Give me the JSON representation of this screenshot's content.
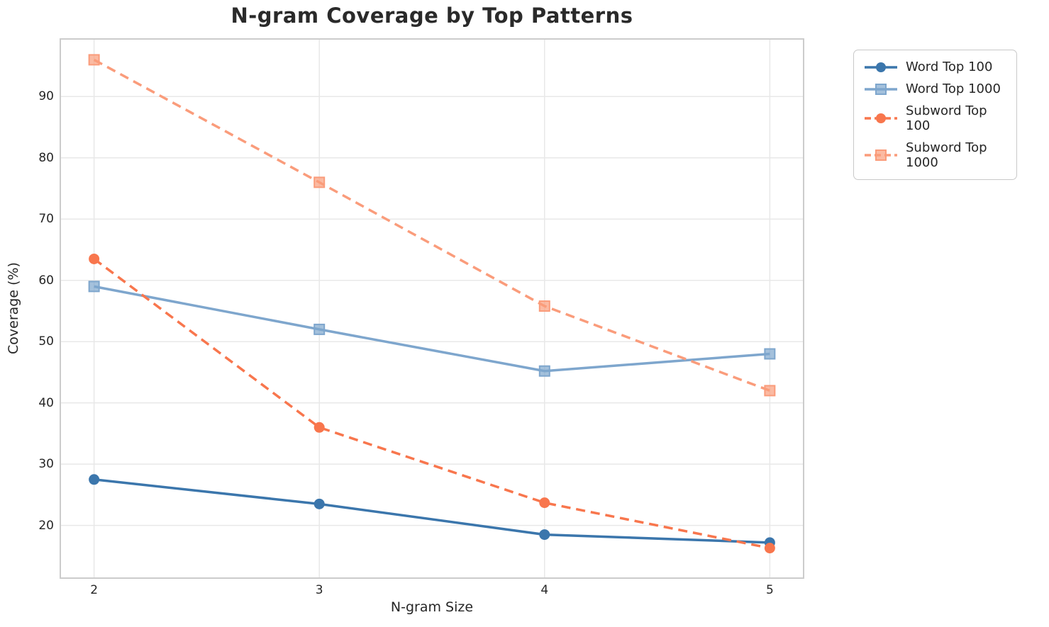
{
  "chart_data": {
    "type": "line",
    "title": "N-gram Coverage by Top Patterns",
    "xlabel": "N-gram Size",
    "ylabel": "Coverage (%)",
    "x": [
      2,
      3,
      4,
      5
    ],
    "xtick_labels": [
      "2",
      "3",
      "4",
      "5"
    ],
    "yticks": [
      20,
      30,
      40,
      50,
      60,
      70,
      80,
      90
    ],
    "xlim": [
      1.85,
      5.15
    ],
    "ylim": [
      11.4,
      99.4
    ],
    "grid": true,
    "grid_color": "#e8e8e8",
    "spine_color": "#cccccc",
    "legend_position": "outside-right-top",
    "series": [
      {
        "name": "Word Top 100",
        "values": [
          27.5,
          23.5,
          18.5,
          17.2
        ],
        "color": "#3B76AC",
        "marker": "circle",
        "linestyle": "solid"
      },
      {
        "name": "Word Top 1000",
        "values": [
          59.0,
          52.0,
          45.2,
          48.0
        ],
        "color": "#7EA6CD",
        "marker": "square",
        "linestyle": "solid"
      },
      {
        "name": "Subword Top 100",
        "values": [
          63.5,
          36.0,
          23.7,
          16.3
        ],
        "color": "#F8764D",
        "marker": "circle",
        "linestyle": "dashed"
      },
      {
        "name": "Subword Top 1000",
        "values": [
          96.0,
          76.0,
          55.8,
          42.0
        ],
        "color": "#FA9C7B",
        "marker": "square",
        "linestyle": "dashed"
      }
    ]
  }
}
